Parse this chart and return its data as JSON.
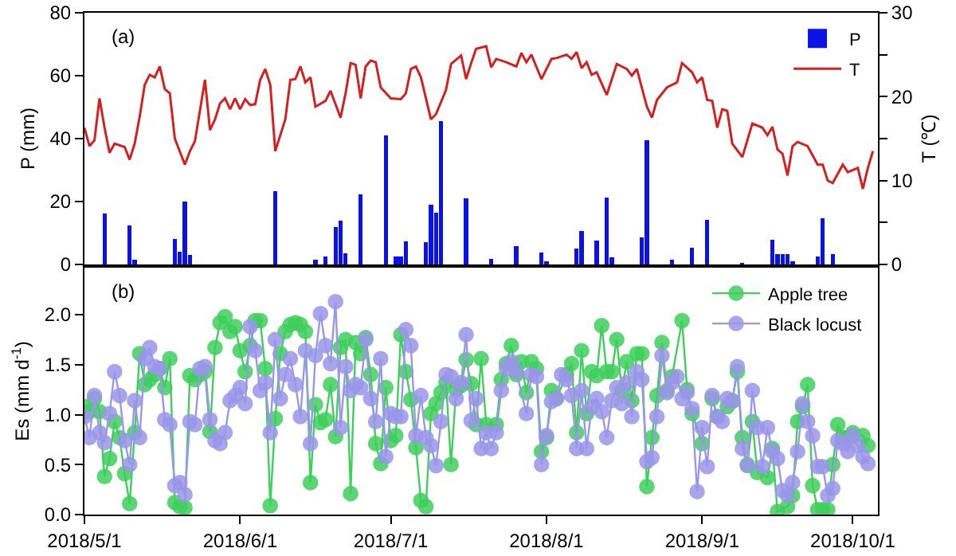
{
  "chart_data": [
    {
      "type": "bar",
      "ylabel": "P (mm)",
      "y2label": "T (℃)",
      "annotations": [
        "(a)"
      ],
      "legend": "top right",
      "tick_labels": "y",
      "xlim": [
        "2018-05-01",
        "2018-10-06"
      ],
      "ylim": [
        0,
        80
      ],
      "yticks": [
        0,
        20,
        40,
        60,
        80
      ],
      "y2lim": [
        0,
        30
      ],
      "y2ticks": [
        0,
        {
          "value": 5,
          "label": null
        },
        10,
        {
          "value": 15,
          "label": null
        },
        20,
        {
          "value": 25,
          "label": null
        },
        30
      ],
      "series": [
        {
          "name": "P",
          "color": "#0a12e6",
          "x": [
            "2018-05-05",
            "2018-05-10",
            "2018-05-11",
            "2018-05-19",
            "2018-05-20",
            "2018-05-21",
            "2018-05-22",
            "2018-06-08",
            "2018-06-16",
            "2018-06-18",
            "2018-06-20",
            "2018-06-21",
            "2018-06-22",
            "2018-06-25",
            "2018-06-30",
            "2018-07-02",
            "2018-07-03",
            "2018-07-04",
            "2018-07-08",
            "2018-07-09",
            "2018-07-10",
            "2018-07-11",
            "2018-07-16",
            "2018-07-21",
            "2018-07-26",
            "2018-07-31",
            "2018-08-01",
            "2018-08-07",
            "2018-08-08",
            "2018-08-11",
            "2018-08-13",
            "2018-08-14",
            "2018-08-20",
            "2018-08-21",
            "2018-08-26",
            "2018-08-30",
            "2018-09-02",
            "2018-09-09",
            "2018-09-15",
            "2018-09-16",
            "2018-09-17",
            "2018-09-18",
            "2018-09-19",
            "2018-09-24",
            "2018-09-25",
            "2018-09-27"
          ],
          "values": [
            16.2,
            12.5,
            1.5,
            8,
            4,
            20,
            3,
            23.3,
            1.5,
            2.5,
            12,
            14,
            3.5,
            22.3,
            41,
            2.5,
            2.5,
            7.3,
            7,
            19,
            16.5,
            45.5,
            21,
            1.8,
            5.9,
            3.9,
            1,
            5.1,
            10.6,
            7.6,
            21.3,
            2.2,
            8.5,
            39.5,
            1.4,
            5.4,
            14.3,
            0.6,
            7.8,
            3.2,
            3.2,
            3.2,
            1,
            2.5,
            14.8,
            3.2
          ]
        },
        {
          "name": "T",
          "type": "line",
          "axis": "y2",
          "color": "#d42020",
          "x": [
            "2018-05-01",
            "2018-05-02",
            "2018-05-03",
            "2018-05-04",
            "2018-05-05",
            "2018-05-06",
            "2018-05-07",
            "2018-05-09",
            "2018-05-10",
            "2018-05-11",
            "2018-05-12",
            "2018-05-13",
            "2018-05-14",
            "2018-05-15",
            "2018-05-16",
            "2018-05-17",
            "2018-05-18",
            "2018-05-19",
            "2018-05-21",
            "2018-05-22",
            "2018-05-23",
            "2018-05-25",
            "2018-05-26",
            "2018-05-27",
            "2018-05-28",
            "2018-05-29",
            "2018-05-30",
            "2018-05-31",
            "2018-06-01",
            "2018-06-02",
            "2018-06-03",
            "2018-06-04",
            "2018-06-05",
            "2018-06-06",
            "2018-06-07",
            "2018-06-08",
            "2018-06-10",
            "2018-06-11",
            "2018-06-12",
            "2018-06-13",
            "2018-06-14",
            "2018-06-15",
            "2018-06-16",
            "2018-06-18",
            "2018-06-19",
            "2018-06-21",
            "2018-06-22",
            "2018-06-23",
            "2018-06-24",
            "2018-06-25",
            "2018-06-26",
            "2018-06-27",
            "2018-06-28",
            "2018-06-29",
            "2018-07-01",
            "2018-07-03",
            "2018-07-04",
            "2018-07-05",
            "2018-07-06",
            "2018-07-07",
            "2018-07-09",
            "2018-07-10",
            "2018-07-12",
            "2018-07-13",
            "2018-07-15",
            "2018-07-16",
            "2018-07-17",
            "2018-07-18",
            "2018-07-20",
            "2018-07-21",
            "2018-07-22",
            "2018-07-24",
            "2018-07-26",
            "2018-07-27",
            "2018-07-28",
            "2018-07-29",
            "2018-07-31",
            "2018-08-02",
            "2018-08-03",
            "2018-08-05",
            "2018-08-06",
            "2018-08-07",
            "2018-08-08",
            "2018-08-09",
            "2018-08-10",
            "2018-08-11",
            "2018-08-13",
            "2018-08-15",
            "2018-08-17",
            "2018-08-18",
            "2018-08-19",
            "2018-08-21",
            "2018-08-22",
            "2018-08-23",
            "2018-08-25",
            "2018-08-27",
            "2018-08-28",
            "2018-08-30",
            "2018-08-31",
            "2018-09-01",
            "2018-09-02",
            "2018-09-03",
            "2018-09-04",
            "2018-09-05",
            "2018-09-06",
            "2018-09-07",
            "2018-09-09",
            "2018-09-11",
            "2018-09-13",
            "2018-09-14",
            "2018-09-15",
            "2018-09-16",
            "2018-09-17",
            "2018-09-18",
            "2018-09-19",
            "2018-09-20",
            "2018-09-22",
            "2018-09-24",
            "2018-09-25",
            "2018-09-26",
            "2018-09-27",
            "2018-09-29",
            "2018-09-30",
            "2018-10-02",
            "2018-10-03",
            "2018-10-04",
            "2018-10-05"
          ],
          "values": [
            16.3,
            14.1,
            14.8,
            19.8,
            16.3,
            13.3,
            14.4,
            14.0,
            12.5,
            14.4,
            17.6,
            21.4,
            22.6,
            22.3,
            23.6,
            20.9,
            20.4,
            15.0,
            11.9,
            13.5,
            14.7,
            22.0,
            16.0,
            17.3,
            19.2,
            19.8,
            18.5,
            19.8,
            18.5,
            19.7,
            19.0,
            19.1,
            22.0,
            23.3,
            21.4,
            13.5,
            17.3,
            22.0,
            22.1,
            23.6,
            21.7,
            22.3,
            18.8,
            19.5,
            20.7,
            17.5,
            20.4,
            24.0,
            23.8,
            19.8,
            23.6,
            24.3,
            24.1,
            21.1,
            19.8,
            19.7,
            20.4,
            23.3,
            23.6,
            22.3,
            17.3,
            17.9,
            20.8,
            23.9,
            24.9,
            22.1,
            24.0,
            25.7,
            26.0,
            23.5,
            24.5,
            24.1,
            23.6,
            25.2,
            24.1,
            25.0,
            22.1,
            24.5,
            24.6,
            25.0,
            24.5,
            25.3,
            23.4,
            24.1,
            22.6,
            22.9,
            20.2,
            23.9,
            23.3,
            22.5,
            23.3,
            18.8,
            17.5,
            19.6,
            21.1,
            21.7,
            24.0,
            22.9,
            21.7,
            22.3,
            19.6,
            19.5,
            16.3,
            18.5,
            18.3,
            14.4,
            12.8,
            16.8,
            16.3,
            15.4,
            16.4,
            13.7,
            13.2,
            10.6,
            14.1,
            14.6,
            14.1,
            11.9,
            11.9,
            10.0,
            9.7,
            11.9,
            11.0,
            11.5,
            9.0,
            11.5,
            13.5
          ]
        }
      ]
    },
    {
      "type": "line",
      "ylabel": "Es (mm d$^{-1}$)",
      "annotations": [
        "(b)"
      ],
      "legend": "top right",
      "marker": "circle",
      "line_style": "solid",
      "xlim": [
        "2018-05-01",
        "2018-10-06"
      ],
      "xticks": [
        {
          "value": "2018-05-01",
          "label": "2018/5/1"
        },
        {
          "value": "2018-06-01",
          "label": "2018/6/1"
        },
        {
          "value": "2018-07-01",
          "label": "2018/7/1"
        },
        {
          "value": "2018-08-01",
          "label": "2018/8/1"
        },
        {
          "value": "2018-09-01",
          "label": "2018/9/1"
        },
        {
          "value": "2018-10-01",
          "label": "2018/10/1"
        }
      ],
      "ylim": [
        0,
        2.47
      ],
      "yticks": [
        {
          "value": 0,
          "label": "0.0"
        },
        {
          "value": 0.5,
          "label": "0.5"
        },
        {
          "value": 1,
          "label": "1.0"
        },
        {
          "value": 1.5,
          "label": "1.5"
        },
        {
          "value": 2,
          "label": "2.0"
        }
      ],
      "series": [
        {
          "name": "Apple tree",
          "color": "#3fcf5c",
          "x": [
            "2018-05-01",
            "2018-05-02",
            "2018-05-03",
            "2018-05-04",
            "2018-05-05",
            "2018-05-06",
            "2018-05-07",
            "2018-05-08",
            "2018-05-09",
            "2018-05-10",
            "2018-05-11",
            "2018-05-12",
            "2018-05-13",
            "2018-05-14",
            "2018-05-15",
            "2018-05-16",
            "2018-05-17",
            "2018-05-18",
            "2018-05-19",
            "2018-05-20",
            "2018-05-21",
            "2018-05-22",
            "2018-05-23",
            "2018-05-24",
            "2018-05-25",
            "2018-05-26",
            "2018-05-27",
            "2018-05-28",
            "2018-05-29",
            "2018-05-30",
            "2018-05-31",
            "2018-06-01",
            "2018-06-02",
            "2018-06-03",
            "2018-06-04",
            "2018-06-05",
            "2018-06-06",
            "2018-06-07",
            "2018-06-08",
            "2018-06-09",
            "2018-06-10",
            "2018-06-11",
            "2018-06-12",
            "2018-06-13",
            "2018-06-14",
            "2018-06-15",
            "2018-06-16",
            "2018-06-17",
            "2018-06-18",
            "2018-06-19",
            "2018-06-20",
            "2018-06-21",
            "2018-06-22",
            "2018-06-23",
            "2018-06-24",
            "2018-06-25",
            "2018-06-26",
            "2018-06-27",
            "2018-06-28",
            "2018-06-29",
            "2018-06-30",
            "2018-07-01",
            "2018-07-02",
            "2018-07-03",
            "2018-07-04",
            "2018-07-05",
            "2018-07-06",
            "2018-07-07",
            "2018-07-08",
            "2018-07-09",
            "2018-07-10",
            "2018-07-11",
            "2018-07-12",
            "2018-07-13",
            "2018-07-14",
            "2018-07-15",
            "2018-07-16",
            "2018-07-17",
            "2018-07-18",
            "2018-07-19",
            "2018-07-20",
            "2018-07-22",
            "2018-07-23",
            "2018-07-24",
            "2018-07-25",
            "2018-07-26",
            "2018-07-27",
            "2018-07-28",
            "2018-07-29",
            "2018-07-30",
            "2018-07-31",
            "2018-08-01",
            "2018-08-02",
            "2018-08-03",
            "2018-08-05",
            "2018-08-06",
            "2018-08-07",
            "2018-08-08",
            "2018-08-09",
            "2018-08-10",
            "2018-08-11",
            "2018-08-12",
            "2018-08-13",
            "2018-08-14",
            "2018-08-15",
            "2018-08-16",
            "2018-08-17",
            "2018-08-18",
            "2018-08-19",
            "2018-08-20",
            "2018-08-21",
            "2018-08-22",
            "2018-08-23",
            "2018-08-24",
            "2018-08-25",
            "2018-08-26",
            "2018-08-28",
            "2018-08-29",
            "2018-08-30",
            "2018-09-01",
            "2018-09-02",
            "2018-09-03",
            "2018-09-04",
            "2018-09-06",
            "2018-09-07",
            "2018-09-08",
            "2018-09-09",
            "2018-09-10",
            "2018-09-11",
            "2018-09-12",
            "2018-09-14",
            "2018-09-15",
            "2018-09-16",
            "2018-09-18",
            "2018-09-19",
            "2018-09-20",
            "2018-09-21",
            "2018-09-22",
            "2018-09-23",
            "2018-09-24",
            "2018-09-25",
            "2018-09-26",
            "2018-09-27",
            "2018-09-28",
            "2018-09-29",
            "2018-09-30",
            "2018-10-01",
            "2018-10-03",
            "2018-10-04"
          ],
          "values": [
            1.08,
            1.03,
            1.16,
            1.03,
            0.38,
            0.56,
            0.93,
            0.77,
            0.41,
            0.11,
            0.82,
            1.61,
            1.3,
            1.35,
            1.4,
            1.46,
            1.27,
            1.56,
            0.12,
            0.08,
            0.07,
            1.39,
            1.35,
            1.4,
            1.43,
            0.83,
            1.67,
            1.92,
            1.98,
            1.83,
            1.88,
            1.64,
            1.43,
            1.69,
            1.94,
            1.94,
            1.46,
            0.09,
            0.96,
            1.61,
            1.83,
            1.9,
            1.92,
            1.9,
            1.83,
            0.32,
            1.1,
            0.92,
            0.95,
            1.3,
            0.78,
            1.67,
            1.75,
            0.21,
            1.72,
            1.61,
            1.77,
            1.4,
            0.71,
            0.51,
            1.27,
            0.74,
            0.79,
            1.8,
            1.43,
            1.15,
            0.67,
            0.14,
            0.08,
            1.01,
            1.11,
            1.22,
            1.32,
            0.5,
            1.25,
            1.29,
            1.55,
            1.31,
            0.9,
            1.56,
            0.9,
            0.9,
            1.35,
            1.51,
            1.69,
            1.4,
            1.53,
            1.22,
            1.53,
            1.46,
            0.63,
            0.77,
            1.24,
            1.16,
            1.4,
            1.51,
            0.82,
            1.64,
            1.01,
            1.43,
            1.39,
            1.89,
            1.43,
            1.43,
            1.75,
            1.24,
            1.53,
            1.14,
            1.61,
            1.61,
            0.28,
            0.77,
            1.19,
            1.72,
            1.24,
            1.38,
            1.94,
            1.25,
            1.01,
            0.71,
            null,
            1.16,
            0.98,
            1.08,
            1.14,
            1.43,
            0.77,
            0.5,
            0.93,
            0.42,
            0.37,
            0.66,
            0.03,
            0.08,
            0.19,
            0.93,
            1.08,
            1.3,
            0.29,
            0.05,
            0.05,
            0.05,
            0.5,
            0.9,
            0.77,
            0.77,
            0.82,
            0.79,
            0.69
          ]
        },
        {
          "name": "Black locust",
          "color": "#9a96ea",
          "x": [
            "2018-05-01",
            "2018-05-02",
            "2018-05-03",
            "2018-05-04",
            "2018-05-05",
            "2018-05-06",
            "2018-05-07",
            "2018-05-08",
            "2018-05-09",
            "2018-05-10",
            "2018-05-11",
            "2018-05-12",
            "2018-05-13",
            "2018-05-14",
            "2018-05-15",
            "2018-05-16",
            "2018-05-17",
            "2018-05-18",
            "2018-05-19",
            "2018-05-20",
            "2018-05-21",
            "2018-05-22",
            "2018-05-23",
            "2018-05-24",
            "2018-05-25",
            "2018-05-26",
            "2018-05-27",
            "2018-05-28",
            "2018-05-29",
            "2018-05-30",
            "2018-05-31",
            "2018-06-01",
            "2018-06-02",
            "2018-06-03",
            "2018-06-04",
            "2018-06-05",
            "2018-06-06",
            "2018-06-07",
            "2018-06-08",
            "2018-06-09",
            "2018-06-10",
            "2018-06-11",
            "2018-06-12",
            "2018-06-13",
            "2018-06-14",
            "2018-06-15",
            "2018-06-16",
            "2018-06-17",
            "2018-06-18",
            "2018-06-19",
            "2018-06-20",
            "2018-06-21",
            "2018-06-22",
            "2018-06-23",
            "2018-06-24",
            "2018-06-25",
            "2018-06-26",
            "2018-06-27",
            "2018-06-28",
            "2018-06-29",
            "2018-06-30",
            "2018-07-01",
            "2018-07-02",
            "2018-07-03",
            "2018-07-04",
            "2018-07-05",
            "2018-07-06",
            "2018-07-07",
            "2018-07-08",
            "2018-07-09",
            "2018-07-10",
            "2018-07-11",
            "2018-07-12",
            "2018-07-13",
            "2018-07-14",
            "2018-07-15",
            "2018-07-16",
            "2018-07-17",
            "2018-07-18",
            "2018-07-19",
            "2018-07-20",
            "2018-07-21",
            "2018-07-22",
            "2018-07-23",
            "2018-07-24",
            "2018-07-25",
            "2018-07-26",
            "2018-07-28",
            "2018-07-29",
            "2018-07-30",
            "2018-07-31",
            "2018-08-01",
            "2018-08-02",
            "2018-08-03",
            "2018-08-04",
            "2018-08-05",
            "2018-08-06",
            "2018-08-07",
            "2018-08-08",
            "2018-08-09",
            "2018-08-10",
            "2018-08-11",
            "2018-08-12",
            "2018-08-13",
            "2018-08-14",
            "2018-08-15",
            "2018-08-16",
            "2018-08-17",
            "2018-08-18",
            "2018-08-19",
            "2018-08-20",
            "2018-08-21",
            "2018-08-22",
            "2018-08-23",
            "2018-08-24",
            "2018-08-25",
            "2018-08-26",
            "2018-08-27",
            "2018-08-28",
            "2018-08-29",
            "2018-08-30",
            "2018-08-31",
            "2018-09-01",
            "2018-09-02",
            "2018-09-03",
            "2018-09-04",
            "2018-09-05",
            "2018-09-06",
            "2018-09-07",
            "2018-09-08",
            "2018-09-09",
            "2018-09-10",
            "2018-09-11",
            "2018-09-12",
            "2018-09-13",
            "2018-09-14",
            "2018-09-15",
            "2018-09-16",
            "2018-09-17",
            "2018-09-18",
            "2018-09-19",
            "2018-09-20",
            "2018-09-21",
            "2018-09-22",
            "2018-09-23",
            "2018-09-24",
            "2018-09-25",
            "2018-09-26",
            "2018-09-27",
            "2018-09-28",
            "2018-09-29",
            "2018-09-30",
            "2018-10-01",
            "2018-10-02",
            "2018-10-03",
            "2018-10-04"
          ],
          "values": [
            0.98,
            0.77,
            1.19,
            0.82,
            0.72,
            1.01,
            1.43,
            1.19,
            0.74,
            0.5,
            1.14,
            0.77,
            1.56,
            1.67,
            1.48,
            1.46,
            0.95,
            0.9,
            0.29,
            0.32,
            0.2,
            0.93,
            0.9,
            1.46,
            1.48,
            0.95,
            0.74,
            0.71,
            0.82,
            1.14,
            1.19,
            1.27,
            1.11,
            1.88,
            1.64,
            1.24,
            1.32,
            0.82,
            1.75,
            1.16,
            1.4,
            1.56,
            1.3,
            0.98,
            1.64,
            0.71,
            1.59,
            2.01,
            1.69,
            1.51,
            2.13,
            0.87,
            1.48,
            1.24,
            1.3,
            1.27,
            1.75,
            1.16,
            0.93,
            1.56,
            0.58,
            1.01,
            0.98,
            0.98,
            1.85,
            1.69,
            0.79,
            1.19,
            0.77,
            0.69,
            0.49,
            0.93,
            1.4,
            1.38,
            1.16,
            1.32,
            1.8,
            0.94,
            1.16,
            0.66,
            0.82,
            0.66,
            0.82,
            1.24,
            1.46,
            1.53,
            1.43,
            1.01,
            1.4,
            1.38,
            0.5,
            0.79,
            1.13,
            1.16,
            1.4,
            1.35,
            1.19,
            0.66,
            1.24,
            0.66,
            1.08,
            1.16,
            1.03,
            0.77,
            1.14,
            1.27,
            1.11,
            1.32,
            0.98,
            1.43,
            1.35,
            0.53,
            0.57,
            0.98,
            1.59,
            1.22,
            1.32,
            1.38,
            1.16,
            1.22,
            1.06,
            0.23,
            0.87,
            0.48,
            1.19,
            0.98,
            0.93,
            1.16,
            1.13,
            1.48,
            0.66,
            0.49,
            1.24,
            0.87,
            0.48,
            0.87,
            0.63,
            0.56,
            0.24,
            0.19,
            0.32,
            0.63,
            1.11,
            0.93,
            0.79,
            0.48,
            0.48,
            0.19,
            0.26,
            0.74,
            0.71,
            0.63,
            0.79,
            0.69,
            0.58,
            0.51
          ]
        }
      ]
    }
  ]
}
